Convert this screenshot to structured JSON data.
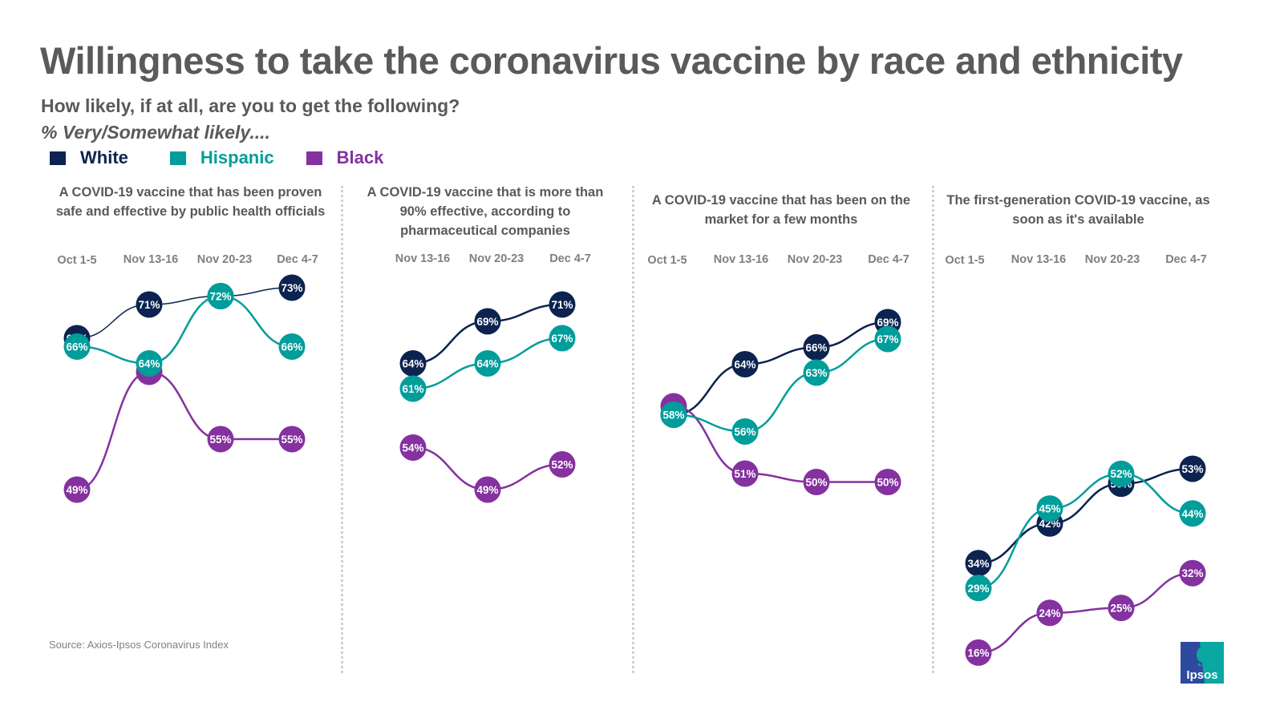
{
  "header": {
    "title": "Willingness to take the coronavirus vaccine by race and ethnicity",
    "subtitle": "How likely, if at all, are you to get the following?",
    "note": "% Very/Somewhat likely...."
  },
  "legend": [
    {
      "label": "White",
      "color": "#0c2350"
    },
    {
      "label": "Hispanic",
      "color": "#009d9a"
    },
    {
      "label": "Black",
      "color": "#8531a0"
    }
  ],
  "footer": {
    "source": "Source: Axios-Ipsos Coronavirus Index",
    "logo_text": "Ipsos"
  },
  "chart_data": [
    {
      "type": "line",
      "title": "A COVID-19 vaccine that has been proven safe and effective by public health officials",
      "categories": [
        "Oct 1-5",
        "Nov 13-16",
        "Nov 20-23",
        "Dec 4-7"
      ],
      "series": [
        {
          "name": "White",
          "values": [
            67,
            71,
            72,
            73
          ],
          "labels": [
            "67%",
            "71%",
            "",
            "73%"
          ]
        },
        {
          "name": "Hispanic",
          "values": [
            66,
            64,
            72,
            66
          ],
          "labels": [
            "66%",
            "64%",
            "72%",
            "66%"
          ]
        },
        {
          "name": "Black",
          "values": [
            49,
            63,
            55,
            55
          ],
          "labels": [
            "49%",
            "",
            "55%",
            "55%"
          ]
        }
      ],
      "xlabel": "",
      "ylabel": "% Very/Somewhat likely"
    },
    {
      "type": "line",
      "title": "A COVID-19 vaccine that is more than 90% effective, according to pharmaceutical companies",
      "categories": [
        "Nov 13-16",
        "Nov 20-23",
        "Dec 4-7"
      ],
      "series": [
        {
          "name": "White",
          "values": [
            64,
            69,
            71
          ],
          "labels": [
            "64%",
            "69%",
            "71%"
          ]
        },
        {
          "name": "Hispanic",
          "values": [
            61,
            64,
            67
          ],
          "labels": [
            "61%",
            "64%",
            "67%"
          ]
        },
        {
          "name": "Black",
          "values": [
            54,
            49,
            52
          ],
          "labels": [
            "54%",
            "49%",
            "52%"
          ]
        }
      ],
      "xlabel": "",
      "ylabel": "% Very/Somewhat likely"
    },
    {
      "type": "line",
      "title": "A COVID-19 vaccine that has been on the market for a few months",
      "categories": [
        "Oct 1-5",
        "Nov 13-16",
        "Nov 20-23",
        "Dec 4-7"
      ],
      "series": [
        {
          "name": "White",
          "values": [
            58,
            64,
            66,
            69
          ],
          "labels": [
            "",
            "64%",
            "66%",
            "69%"
          ]
        },
        {
          "name": "Hispanic",
          "values": [
            58,
            56,
            63,
            67
          ],
          "labels": [
            "58%",
            "56%",
            "63%",
            "67%"
          ]
        },
        {
          "name": "Black",
          "values": [
            59,
            51,
            50,
            50
          ],
          "labels": [
            "",
            "51%",
            "50%",
            "50%"
          ]
        }
      ],
      "xlabel": "",
      "ylabel": "% Very/Somewhat likely"
    },
    {
      "type": "line",
      "title": "The first-generation COVID-19 vaccine, as soon as it's available",
      "categories": [
        "Oct 1-5",
        "Nov 13-16",
        "Nov 20-23",
        "Dec 4-7"
      ],
      "series": [
        {
          "name": "White",
          "values": [
            34,
            42,
            50,
            53
          ],
          "labels": [
            "34%",
            "42%",
            "50%",
            "53%"
          ]
        },
        {
          "name": "Hispanic",
          "values": [
            29,
            45,
            52,
            44
          ],
          "labels": [
            "29%",
            "45%",
            "52%",
            "44%"
          ]
        },
        {
          "name": "Black",
          "values": [
            16,
            24,
            25,
            32
          ],
          "labels": [
            "16%",
            "24%",
            "25%",
            "32%"
          ]
        }
      ],
      "xlabel": "",
      "ylabel": "% Very/Somewhat likely"
    }
  ]
}
